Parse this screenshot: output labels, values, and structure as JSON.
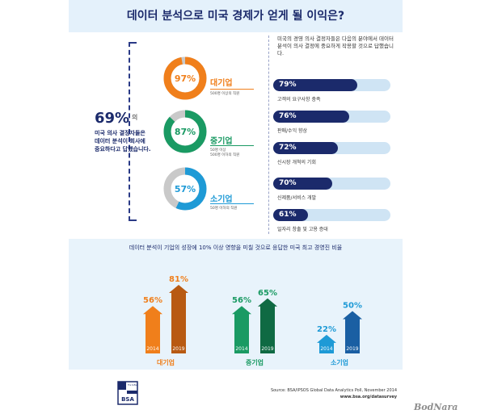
{
  "title": "데이터 분석으로 미국 경제가 얻게 될 이익은?",
  "left_panel": {
    "big_value": "69%",
    "big_suffix": "의",
    "lines": [
      "미국 의사 결정자들은",
      "데이터 분석이 회사에",
      "중요하다고 답했습니다."
    ]
  },
  "donuts": [
    {
      "label": "대기업",
      "value": 97,
      "value_text": "97%",
      "color": "#f07f1b",
      "sub": [
        "500명 이상의 직원"
      ]
    },
    {
      "label": "중기업",
      "value": 87,
      "value_text": "87%",
      "color": "#1a9a63",
      "sub": [
        "50명 이상",
        "500명 이하의 직원"
      ]
    },
    {
      "label": "소기업",
      "value": 57,
      "value_text": "57%",
      "color": "#1e9ad6",
      "sub": [
        "50명 이하의 직원"
      ]
    }
  ],
  "right_panel": {
    "intro": "미국의 경영 의사 결정자들은 다음의 분야에서 데이터 분석이 의사 결정에 중요하게 작용할 것으로 답했습니다.",
    "items": [
      {
        "value": 79,
        "value_text": "79%",
        "label": "고객의 요구사항 충족"
      },
      {
        "value": 76,
        "value_text": "76%",
        "label": "판매/수익 향상"
      },
      {
        "value": 72,
        "value_text": "72%",
        "label": "신시장 개척의 기회"
      },
      {
        "value": 70,
        "value_text": "70%",
        "label": "신제품/서비스 개발"
      },
      {
        "value": 61,
        "value_text": "61%",
        "label": "일자리 창출 및 고용 증대"
      }
    ]
  },
  "chart_data": {
    "type": "bar",
    "title": "데이터 분석이 기업의 성장에 10% 이상 영향을 미칠 것으로 응답한 미국 최고 경영진 비율",
    "categories": [
      "대기업",
      "중기업",
      "소기업"
    ],
    "years": [
      "2014",
      "2019"
    ],
    "series": [
      {
        "name": "2014",
        "values": [
          56,
          56,
          22
        ],
        "labels": [
          "56%",
          "56%",
          "22%"
        ]
      },
      {
        "name": "2019",
        "values": [
          81,
          65,
          50
        ],
        "labels": [
          "81%",
          "65%",
          "50%"
        ]
      }
    ],
    "colors": {
      "대기업": [
        "#f07f1b",
        "#b85a12"
      ],
      "중기업": [
        "#1a9a63",
        "#0f6a43"
      ],
      "소기업": [
        "#1e9ad6",
        "#1a5fa3"
      ]
    }
  },
  "source": {
    "line1": "Source: BSA/IPSOS Global Data Analytics Poll, November 2014",
    "line2": "www.bsa.org/datasurvey"
  },
  "logo": {
    "text": "BSA",
    "subtitle": "The Software Alliance"
  },
  "watermark": "BodNara"
}
